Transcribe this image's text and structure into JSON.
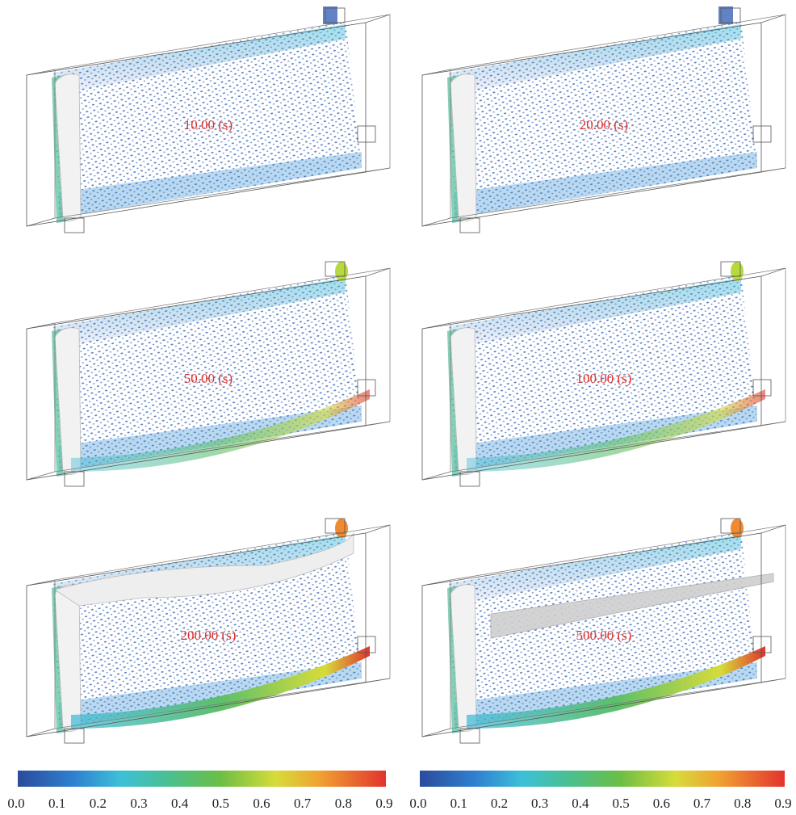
{
  "panels": [
    {
      "label": "10.00 (s)"
    },
    {
      "label": "20.00 (s)"
    },
    {
      "label": "50.00 (s)"
    },
    {
      "label": "100.00 (s)"
    },
    {
      "label": "200.00 (s)"
    },
    {
      "label": "500.00 (s)"
    }
  ],
  "colorbars": [
    {
      "ticks": [
        "0.0",
        "0.1",
        "0.2",
        "0.3",
        "0.4",
        "0.5",
        "0.6",
        "0.7",
        "0.8",
        "0.9"
      ]
    },
    {
      "ticks": [
        "0.0",
        "0.1",
        "0.2",
        "0.3",
        "0.4",
        "0.5",
        "0.6",
        "0.7",
        "0.8",
        "0.9"
      ]
    }
  ]
}
